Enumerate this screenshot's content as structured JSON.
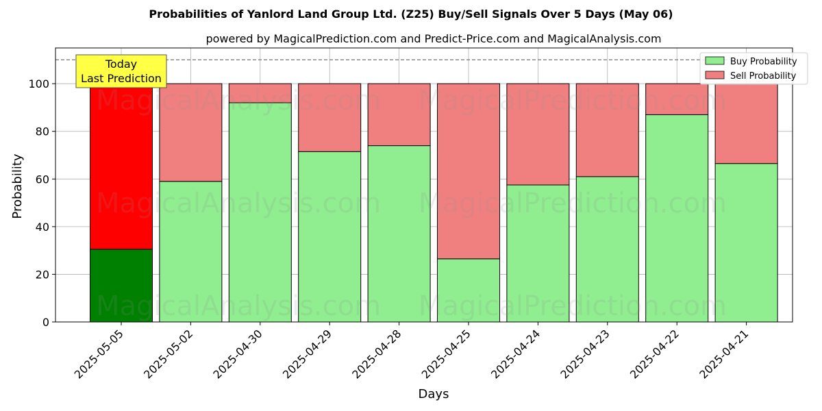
{
  "chart_data": {
    "type": "bar",
    "title": "Probabilities of Yanlord Land Group Ltd. (Z25) Buy/Sell Signals Over 5 Days (May 06)",
    "subtitle": "powered by MagicalPrediction.com and Predict-Price.com and MagicalAnalysis.com",
    "xlabel": "Days",
    "ylabel": "Probability",
    "ylim": [
      0,
      115
    ],
    "yticks": [
      0,
      20,
      40,
      60,
      80,
      100
    ],
    "grid": true,
    "legend_placement": "top-right",
    "categories": [
      "2025-05-05",
      "2025-05-02",
      "2025-04-30",
      "2025-04-29",
      "2025-04-28",
      "2025-04-25",
      "2025-04-24",
      "2025-04-23",
      "2025-04-22",
      "2025-04-21"
    ],
    "series": [
      {
        "name": "Buy Probability",
        "color": "#90ee90",
        "highlight_color": "#008000",
        "values": [
          30.5,
          59,
          92,
          71.5,
          74,
          26.5,
          57.5,
          61,
          87,
          66.5
        ]
      },
      {
        "name": "Sell Probability",
        "color": "#f08080",
        "highlight_color": "#ff0000",
        "values": [
          69.5,
          41,
          8,
          28.5,
          26,
          73.5,
          42.5,
          39,
          13,
          33.5
        ]
      }
    ],
    "reference_line": {
      "value": 110,
      "style": "dashed"
    },
    "annotation": {
      "lines": [
        "Today",
        "Last Prediction"
      ],
      "color": "#ffff44"
    },
    "watermarks": [
      "MagicalAnalysis.com",
      "MagicalPrediction.com"
    ]
  }
}
